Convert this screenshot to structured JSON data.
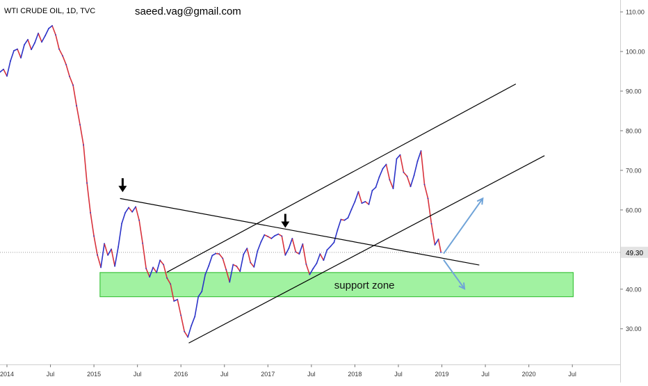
{
  "header": {
    "symbol": "WTI CRUDE OIL, 1D, TVC",
    "watermark": "saeed.vag@gmail.com"
  },
  "chart_data": {
    "type": "line",
    "title": "WTI CRUDE OIL, 1D, TVC",
    "xlabel": "",
    "ylabel": "",
    "xlim": [
      2013.92,
      2021.05
    ],
    "ylim": [
      21.0,
      113.0
    ],
    "x_ticks": [
      {
        "label": "2014",
        "x": 2014.0
      },
      {
        "label": "Jul",
        "x": 2014.5
      },
      {
        "label": "2015",
        "x": 2015.0
      },
      {
        "label": "Jul",
        "x": 2015.5
      },
      {
        "label": "2016",
        "x": 2016.0
      },
      {
        "label": "Jul",
        "x": 2016.5
      },
      {
        "label": "2017",
        "x": 2017.0
      },
      {
        "label": "Jul",
        "x": 2017.5
      },
      {
        "label": "2018",
        "x": 2018.0
      },
      {
        "label": "Jul",
        "x": 2018.5
      },
      {
        "label": "2019",
        "x": 2019.0
      },
      {
        "label": "Jul",
        "x": 2019.5
      },
      {
        "label": "2020",
        "x": 2020.0
      },
      {
        "label": "Jul",
        "x": 2020.5
      }
    ],
    "y_ticks": [
      {
        "label": "30.00",
        "y": 30
      },
      {
        "label": "40.00",
        "y": 40
      },
      {
        "label": "60.00",
        "y": 60
      },
      {
        "label": "70.00",
        "y": 70
      },
      {
        "label": "80.00",
        "y": 80
      },
      {
        "label": "90.00",
        "y": 90
      },
      {
        "label": "100.00",
        "y": 100
      },
      {
        "label": "110.00",
        "y": 110
      }
    ],
    "last_price": {
      "label": "49.30",
      "value": 49.3
    },
    "series": [
      {
        "points": [
          [
            2013.92,
            94.8
          ],
          [
            2013.96,
            95.5
          ],
          [
            2014.0,
            93.8
          ],
          [
            2014.04,
            97.6
          ],
          [
            2014.08,
            100.2
          ],
          [
            2014.12,
            100.6
          ],
          [
            2014.16,
            98.4
          ],
          [
            2014.2,
            101.7
          ],
          [
            2014.24,
            103.0
          ],
          [
            2014.28,
            100.5
          ],
          [
            2014.32,
            102.2
          ],
          [
            2014.36,
            104.6
          ],
          [
            2014.4,
            102.4
          ],
          [
            2014.44,
            104.0
          ],
          [
            2014.48,
            105.8
          ],
          [
            2014.52,
            106.5
          ],
          [
            2014.56,
            104.2
          ],
          [
            2014.6,
            100.6
          ],
          [
            2014.64,
            98.9
          ],
          [
            2014.68,
            96.7
          ],
          [
            2014.72,
            93.7
          ],
          [
            2014.76,
            91.5
          ],
          [
            2014.8,
            86.3
          ],
          [
            2014.84,
            81.5
          ],
          [
            2014.88,
            76.4
          ],
          [
            2014.92,
            66.8
          ],
          [
            2014.96,
            59.3
          ],
          [
            2015.0,
            53.4
          ],
          [
            2015.04,
            48.6
          ],
          [
            2015.08,
            45.5
          ],
          [
            2015.12,
            51.5
          ],
          [
            2015.16,
            48.6
          ],
          [
            2015.2,
            50.1
          ],
          [
            2015.24,
            45.8
          ],
          [
            2015.28,
            50.7
          ],
          [
            2015.32,
            56.6
          ],
          [
            2015.36,
            59.3
          ],
          [
            2015.4,
            60.6
          ],
          [
            2015.44,
            59.5
          ],
          [
            2015.48,
            60.8
          ],
          [
            2015.52,
            57.4
          ],
          [
            2015.56,
            51.6
          ],
          [
            2015.6,
            45.2
          ],
          [
            2015.64,
            43.1
          ],
          [
            2015.68,
            45.5
          ],
          [
            2015.72,
            44.2
          ],
          [
            2015.76,
            47.3
          ],
          [
            2015.8,
            46.2
          ],
          [
            2015.84,
            42.8
          ],
          [
            2015.88,
            41.3
          ],
          [
            2015.92,
            37.0
          ],
          [
            2015.96,
            37.4
          ],
          [
            2016.0,
            33.4
          ],
          [
            2016.04,
            29.3
          ],
          [
            2016.08,
            27.9
          ],
          [
            2016.12,
            30.8
          ],
          [
            2016.16,
            33.1
          ],
          [
            2016.2,
            38.1
          ],
          [
            2016.24,
            39.4
          ],
          [
            2016.28,
            43.7
          ],
          [
            2016.32,
            45.9
          ],
          [
            2016.36,
            48.5
          ],
          [
            2016.4,
            49.0
          ],
          [
            2016.44,
            48.9
          ],
          [
            2016.48,
            47.8
          ],
          [
            2016.52,
            44.9
          ],
          [
            2016.56,
            41.8
          ],
          [
            2016.6,
            46.2
          ],
          [
            2016.64,
            45.8
          ],
          [
            2016.68,
            44.5
          ],
          [
            2016.72,
            48.8
          ],
          [
            2016.76,
            50.3
          ],
          [
            2016.8,
            46.7
          ],
          [
            2016.84,
            45.6
          ],
          [
            2016.88,
            49.6
          ],
          [
            2016.92,
            51.9
          ],
          [
            2016.96,
            53.7
          ],
          [
            2017.0,
            53.3
          ],
          [
            2017.04,
            52.8
          ],
          [
            2017.08,
            53.5
          ],
          [
            2017.12,
            53.9
          ],
          [
            2017.16,
            53.4
          ],
          [
            2017.2,
            48.6
          ],
          [
            2017.24,
            50.3
          ],
          [
            2017.28,
            52.8
          ],
          [
            2017.32,
            49.4
          ],
          [
            2017.36,
            48.9
          ],
          [
            2017.4,
            51.4
          ],
          [
            2017.44,
            46.3
          ],
          [
            2017.48,
            43.7
          ],
          [
            2017.52,
            45.2
          ],
          [
            2017.56,
            46.5
          ],
          [
            2017.6,
            48.9
          ],
          [
            2017.64,
            47.3
          ],
          [
            2017.68,
            49.9
          ],
          [
            2017.72,
            50.8
          ],
          [
            2017.76,
            51.8
          ],
          [
            2017.8,
            54.9
          ],
          [
            2017.84,
            57.6
          ],
          [
            2017.88,
            57.4
          ],
          [
            2017.92,
            58.0
          ],
          [
            2017.96,
            60.1
          ],
          [
            2018.0,
            62.1
          ],
          [
            2018.04,
            64.6
          ],
          [
            2018.08,
            61.7
          ],
          [
            2018.12,
            62.1
          ],
          [
            2018.16,
            61.4
          ],
          [
            2018.2,
            64.9
          ],
          [
            2018.24,
            65.7
          ],
          [
            2018.28,
            68.3
          ],
          [
            2018.32,
            70.4
          ],
          [
            2018.36,
            71.5
          ],
          [
            2018.4,
            67.6
          ],
          [
            2018.44,
            65.4
          ],
          [
            2018.48,
            72.9
          ],
          [
            2018.52,
            73.9
          ],
          [
            2018.56,
            69.5
          ],
          [
            2018.6,
            68.5
          ],
          [
            2018.64,
            65.9
          ],
          [
            2018.68,
            68.7
          ],
          [
            2018.72,
            72.3
          ],
          [
            2018.76,
            74.9
          ],
          [
            2018.8,
            66.4
          ],
          [
            2018.84,
            62.9
          ],
          [
            2018.88,
            56.5
          ],
          [
            2018.92,
            51.2
          ],
          [
            2018.96,
            52.6
          ],
          [
            2018.99,
            49.3
          ]
        ]
      }
    ],
    "annotations": {
      "support_zone": {
        "label": "support zone",
        "x": [
          2015.07,
          2020.51
        ],
        "y": [
          38.1,
          44.2
        ]
      },
      "trendlines": [
        {
          "name": "channel-upper-line",
          "from": [
            2015.84,
            44.3
          ],
          "to": [
            2019.85,
            91.8
          ]
        },
        {
          "name": "channel-lower-line",
          "from": [
            2016.09,
            26.4
          ],
          "to": [
            2020.18,
            73.7
          ]
        },
        {
          "name": "descending-resistance-line",
          "from": [
            2015.3,
            62.9
          ],
          "to": [
            2019.43,
            46.1
          ]
        }
      ],
      "down_arrows": [
        {
          "name": "marker-arrow-2015",
          "at": [
            2015.33,
            64.5
          ]
        },
        {
          "name": "marker-arrow-2017",
          "at": [
            2017.2,
            55.5
          ]
        }
      ],
      "projection_arrows": [
        {
          "name": "projection-up-arrow",
          "from": [
            2019.02,
            49.0
          ],
          "to": [
            2019.47,
            62.9
          ]
        },
        {
          "name": "projection-down-arrow",
          "from": [
            2019.02,
            47.4
          ],
          "to": [
            2019.26,
            40.1
          ]
        }
      ]
    },
    "grid": false,
    "legend": "none",
    "colors": {
      "bull": "#2a32c8",
      "bear": "#d8323c",
      "support_fill": "#90f090",
      "support_border": "#3fc43f",
      "projection_arrow": "#6fa3d8",
      "price_tag_bg": "#e3e3e3",
      "price_line": "#9a9a9a"
    }
  }
}
